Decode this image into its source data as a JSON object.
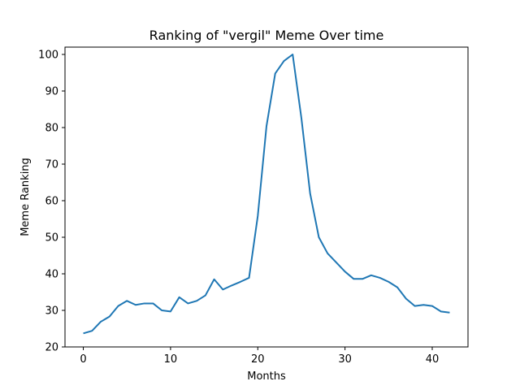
{
  "chart_data": {
    "type": "line",
    "title": "Ranking of \"vergil\" Meme Over time",
    "xlabel": "Months",
    "ylabel": "Meme Ranking",
    "xlim": [
      -2.1,
      44.1
    ],
    "ylim": [
      20,
      102
    ],
    "xticks": [
      0,
      10,
      20,
      30,
      40
    ],
    "yticks": [
      20,
      30,
      40,
      50,
      60,
      70,
      80,
      90,
      100
    ],
    "grid": false,
    "series": [
      {
        "color": "#1f77b4",
        "x": [
          0,
          1,
          2,
          3,
          4,
          5,
          6,
          7,
          8,
          9,
          10,
          11,
          12,
          13,
          14,
          15,
          16,
          17,
          18,
          19,
          20,
          21,
          22,
          23,
          24,
          25,
          26,
          27,
          28,
          29,
          30,
          31,
          32,
          33,
          34,
          35,
          36,
          37,
          38,
          39,
          40,
          41,
          42
        ],
        "y": [
          23.7,
          24.4,
          26.9,
          28.3,
          31.2,
          32.6,
          31.5,
          31.9,
          31.9,
          30.0,
          29.7,
          33.6,
          31.9,
          32.6,
          34.1,
          38.5,
          35.7,
          36.8,
          37.8,
          38.9,
          55.8,
          80.4,
          94.8,
          98.2,
          100.0,
          82.6,
          62.0,
          50.0,
          45.6,
          43.1,
          40.6,
          38.6,
          38.6,
          39.6,
          38.9,
          37.8,
          36.3,
          33.2,
          31.2,
          31.5,
          31.2,
          29.7,
          29.4
        ]
      }
    ]
  }
}
